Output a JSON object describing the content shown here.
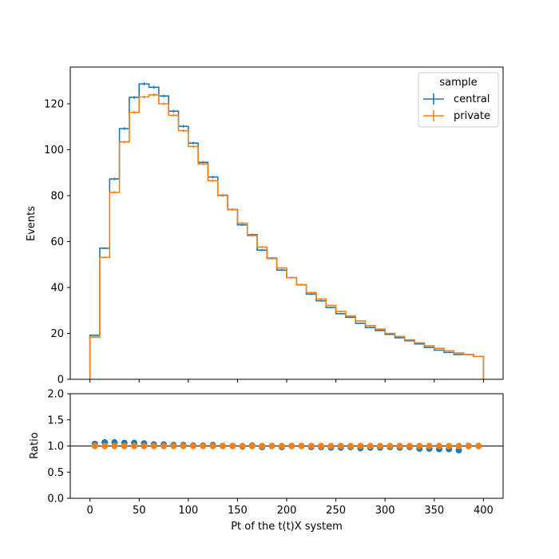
{
  "chart_data": [
    {
      "type": "line",
      "ylabel": "Events",
      "ylim": [
        0,
        136
      ],
      "xlim": [
        -20,
        420
      ],
      "yticks": [
        0,
        20,
        40,
        60,
        80,
        100,
        120
      ],
      "legend": {
        "title": "sample",
        "placement": "top-right",
        "entries": [
          "central",
          "private"
        ]
      },
      "bin_edges": [
        0,
        10,
        20,
        30,
        40,
        50,
        60,
        70,
        80,
        90,
        100,
        110,
        120,
        130,
        140,
        150,
        160,
        170,
        180,
        190,
        200,
        210,
        220,
        230,
        240,
        250,
        260,
        270,
        280,
        290,
        300,
        310,
        320,
        330,
        340,
        350,
        360,
        370,
        380,
        390,
        400
      ],
      "series": [
        {
          "name": "central",
          "color": "#1f77b4",
          "values": [
            19.2,
            57.1,
            87.3,
            109.2,
            122.8,
            128.7,
            127.2,
            123.4,
            116.8,
            110.2,
            102.9,
            94.5,
            88.1,
            80.2,
            74.0,
            67.3,
            63.0,
            56.3,
            52.8,
            47.6,
            44.3,
            41.2,
            37.1,
            34.2,
            31.3,
            28.6,
            27.0,
            24.4,
            22.6,
            21.3,
            19.6,
            18.1,
            16.8,
            15.4,
            13.9,
            12.7,
            11.7,
            10.8,
            10.8,
            10.0
          ]
        },
        {
          "name": "private",
          "color": "#ff7f0e",
          "values": [
            18.4,
            53.1,
            81.4,
            103.4,
            116.3,
            123.0,
            123.9,
            120.0,
            115.0,
            108.3,
            101.4,
            93.8,
            86.5,
            80.0,
            73.9,
            68.0,
            62.6,
            57.6,
            52.6,
            48.5,
            44.3,
            41.2,
            37.8,
            35.0,
            32.2,
            29.6,
            27.6,
            25.4,
            23.4,
            21.9,
            20.0,
            18.7,
            17.2,
            15.9,
            14.6,
            13.5,
            12.4,
            11.5,
            10.8,
            10.0
          ]
        }
      ]
    },
    {
      "type": "scatter",
      "ylabel": "Ratio",
      "xlabel": "Pt of the t(t)X system",
      "ylim": [
        0,
        2
      ],
      "xlim": [
        -20,
        420
      ],
      "yticks": [
        0.0,
        0.5,
        1.0,
        1.5,
        2.0
      ],
      "ytick_labels": [
        "0.0",
        "0.5",
        "1.0",
        "1.5",
        "2.0"
      ],
      "xticks": [
        0,
        50,
        100,
        150,
        200,
        250,
        300,
        350,
        400
      ],
      "reference_line": 1.0,
      "x": [
        5,
        15,
        25,
        35,
        45,
        55,
        65,
        75,
        85,
        95,
        105,
        115,
        125,
        135,
        145,
        155,
        165,
        175,
        185,
        195,
        205,
        215,
        225,
        235,
        245,
        255,
        265,
        275,
        285,
        295,
        305,
        315,
        325,
        335,
        345,
        355,
        365,
        375,
        385,
        395
      ],
      "series": [
        {
          "name": "central",
          "color": "#1f77b4",
          "values": [
            1.04,
            1.07,
            1.07,
            1.06,
            1.06,
            1.05,
            1.03,
            1.03,
            1.02,
            1.02,
            1.01,
            1.01,
            1.02,
            1.0,
            1.0,
            0.99,
            1.01,
            0.98,
            1.0,
            0.98,
            1.0,
            1.0,
            0.98,
            0.98,
            0.97,
            0.97,
            0.98,
            0.96,
            0.97,
            0.97,
            0.98,
            0.97,
            0.98,
            0.95,
            0.95,
            0.94,
            0.94,
            0.92,
            1.0,
            1.0
          ]
        },
        {
          "name": "private",
          "color": "#ff7f0e",
          "values": [
            1.0,
            1.0,
            1.0,
            1.0,
            1.0,
            1.0,
            1.0,
            1.0,
            1.0,
            1.0,
            1.0,
            1.0,
            1.0,
            1.0,
            1.0,
            1.0,
            1.0,
            1.0,
            1.0,
            1.0,
            1.0,
            1.0,
            1.0,
            1.0,
            1.0,
            1.0,
            1.0,
            1.0,
            1.0,
            1.0,
            1.0,
            1.0,
            1.0,
            1.0,
            1.0,
            1.0,
            1.0,
            1.0,
            1.0,
            1.0
          ]
        }
      ]
    }
  ]
}
